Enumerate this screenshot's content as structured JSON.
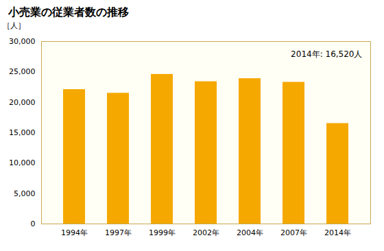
{
  "chart_data": {
    "type": "bar",
    "title": "小売業の従業者数の推移",
    "ylabel": "［人］",
    "annotation": "2014年: 16,520人",
    "categories": [
      "1994年",
      "1997年",
      "1999年",
      "2002年",
      "2004年",
      "2007年",
      "2014年"
    ],
    "values": [
      22100,
      21500,
      24600,
      23400,
      23900,
      23300,
      16520
    ],
    "color": "#F5A800",
    "ylim": [
      0,
      30000
    ],
    "yticks": [
      0,
      {
        "value": 5000,
        "label": "5,000"
      },
      {
        "value": 10000,
        "label": "10,000"
      },
      {
        "value": 15000,
        "label": "15,000"
      },
      {
        "value": 20000,
        "label": "20,000"
      },
      {
        "value": 25000,
        "label": "25,000"
      },
      {
        "value": 30000,
        "label": "30,000"
      }
    ],
    "grid": false
  }
}
